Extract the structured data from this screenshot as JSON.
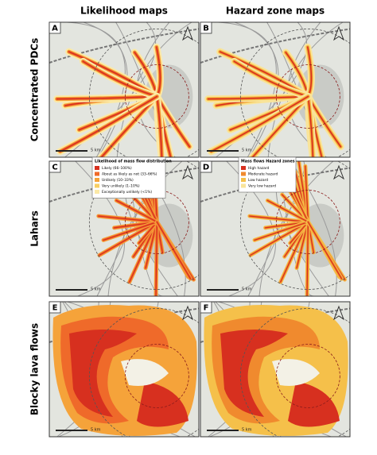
{
  "columns": [
    "Likelihood maps",
    "Hazard zone maps"
  ],
  "rows": [
    "Concentrated PDCs",
    "Lahars",
    "Blocky lava flows"
  ],
  "panels": [
    "A",
    "B",
    "C",
    "D",
    "E",
    "F"
  ],
  "scale_label": "5 km",
  "legends": [
    {
      "title": "Likelihood of mass flow distribution",
      "items": [
        {
          "label": "Likely (66–100%)",
          "color": "#d7301f"
        },
        {
          "label": "About as likely as not (33–66%)",
          "color": "#ef6a2a"
        },
        {
          "label": "Unlikely (10–33%)",
          "color": "#f5a33a"
        },
        {
          "label": "Very unlikely (1–10%)",
          "color": "#f8cf63"
        },
        {
          "label": "Exceptionally unlikely (<1%)",
          "color": "#fbe9a6"
        }
      ]
    },
    {
      "title": "Mass flows Hazard zones",
      "items": [
        {
          "label": "High hazard",
          "color": "#d7301f"
        },
        {
          "label": "Moderate hazard",
          "color": "#f08a2e"
        },
        {
          "label": "Low hazard",
          "color": "#f5c04a"
        },
        {
          "label": "Very low hazard",
          "color": "#f9e49a"
        }
      ]
    }
  ]
}
